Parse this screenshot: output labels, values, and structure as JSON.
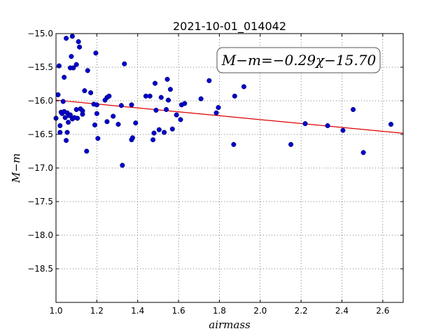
{
  "chart_data": {
    "type": "scatter",
    "title": "2021-10-01_014042",
    "xlabel": "airmass",
    "ylabel": "M−m",
    "xlim": [
      1.0,
      2.7
    ],
    "ylim": [
      -15.0,
      -19.0
    ],
    "y_inverted": true,
    "grid": true,
    "x_ticks": [
      1.0,
      1.2,
      1.4,
      1.6,
      1.8,
      2.0,
      2.2,
      2.4,
      2.6
    ],
    "x_tick_labels": [
      "1.0",
      "1.2",
      "1.4",
      "1.6",
      "1.8",
      "2.0",
      "2.2",
      "2.4",
      "2.6"
    ],
    "y_ticks": [
      -15.0,
      -15.5,
      -16.0,
      -16.5,
      -17.0,
      -17.5,
      -18.0,
      -18.5
    ],
    "y_tick_labels": [
      "−15.0",
      "−15.5",
      "−16.0",
      "−16.5",
      "−17.0",
      "−17.5",
      "−18.0",
      "−18.5"
    ],
    "annotation": "M−m=−0.29χ−15.70",
    "fit": {
      "slope": -0.29,
      "intercept": -15.7,
      "color": "#dd0000"
    },
    "point_color": "#0000cc",
    "points": [
      [
        1.0,
        -16.26
      ],
      [
        1.01,
        -15.91
      ],
      [
        1.015,
        -15.48
      ],
      [
        1.02,
        -16.47
      ],
      [
        1.02,
        -16.37
      ],
      [
        1.025,
        -16.17
      ],
      [
        1.03,
        -16.19
      ],
      [
        1.035,
        -16.01
      ],
      [
        1.04,
        -16.16
      ],
      [
        1.04,
        -15.65
      ],
      [
        1.045,
        -16.25
      ],
      [
        1.05,
        -16.59
      ],
      [
        1.05,
        -15.07
      ],
      [
        1.055,
        -16.47
      ],
      [
        1.055,
        -16.18
      ],
      [
        1.06,
        -16.32
      ],
      [
        1.065,
        -16.22
      ],
      [
        1.07,
        -16.21
      ],
      [
        1.07,
        -15.51
      ],
      [
        1.075,
        -15.34
      ],
      [
        1.08,
        -15.04
      ],
      [
        1.08,
        -16.27
      ],
      [
        1.085,
        -15.51
      ],
      [
        1.09,
        -16.25
      ],
      [
        1.1,
        -16.13
      ],
      [
        1.1,
        -15.46
      ],
      [
        1.105,
        -16.26
      ],
      [
        1.11,
        -15.12
      ],
      [
        1.115,
        -15.2
      ],
      [
        1.12,
        -16.12
      ],
      [
        1.13,
        -16.15
      ],
      [
        1.13,
        -16.2
      ],
      [
        1.14,
        -15.85
      ],
      [
        1.15,
        -16.75
      ],
      [
        1.155,
        -15.55
      ],
      [
        1.17,
        -15.88
      ],
      [
        1.185,
        -16.05
      ],
      [
        1.19,
        -16.36
      ],
      [
        1.195,
        -15.29
      ],
      [
        1.2,
        -16.19
      ],
      [
        1.205,
        -16.56
      ],
      [
        1.2,
        -16.06
      ],
      [
        1.24,
        -15.99
      ],
      [
        1.25,
        -15.95
      ],
      [
        1.26,
        -15.93
      ],
      [
        1.25,
        -16.31
      ],
      [
        1.28,
        -16.23
      ],
      [
        1.305,
        -16.35
      ],
      [
        1.32,
        -16.07
      ],
      [
        1.325,
        -16.96
      ],
      [
        1.335,
        -15.45
      ],
      [
        1.37,
        -16.58
      ],
      [
        1.375,
        -16.55
      ],
      [
        1.37,
        -16.06
      ],
      [
        1.39,
        -16.33
      ],
      [
        1.44,
        -15.93
      ],
      [
        1.46,
        -15.93
      ],
      [
        1.475,
        -16.58
      ],
      [
        1.48,
        -16.48
      ],
      [
        1.485,
        -15.74
      ],
      [
        1.49,
        -16.14
      ],
      [
        1.505,
        -16.43
      ],
      [
        1.515,
        -15.95
      ],
      [
        1.53,
        -16.47
      ],
      [
        1.54,
        -16.13
      ],
      [
        1.545,
        -15.68
      ],
      [
        1.55,
        -15.99
      ],
      [
        1.56,
        -15.83
      ],
      [
        1.57,
        -16.42
      ],
      [
        1.59,
        -16.21
      ],
      [
        1.61,
        -16.28
      ],
      [
        1.615,
        -16.06
      ],
      [
        1.63,
        -16.04
      ],
      [
        1.71,
        -15.97
      ],
      [
        1.75,
        -15.7
      ],
      [
        1.785,
        -16.18
      ],
      [
        1.795,
        -16.1
      ],
      [
        1.87,
        -16.65
      ],
      [
        1.875,
        -15.93
      ],
      [
        1.92,
        -15.79
      ],
      [
        2.15,
        -16.65
      ],
      [
        2.22,
        -16.34
      ],
      [
        2.33,
        -16.37
      ],
      [
        2.405,
        -16.44
      ],
      [
        2.455,
        -16.13
      ],
      [
        2.505,
        -16.77
      ],
      [
        2.64,
        -16.35
      ]
    ]
  }
}
